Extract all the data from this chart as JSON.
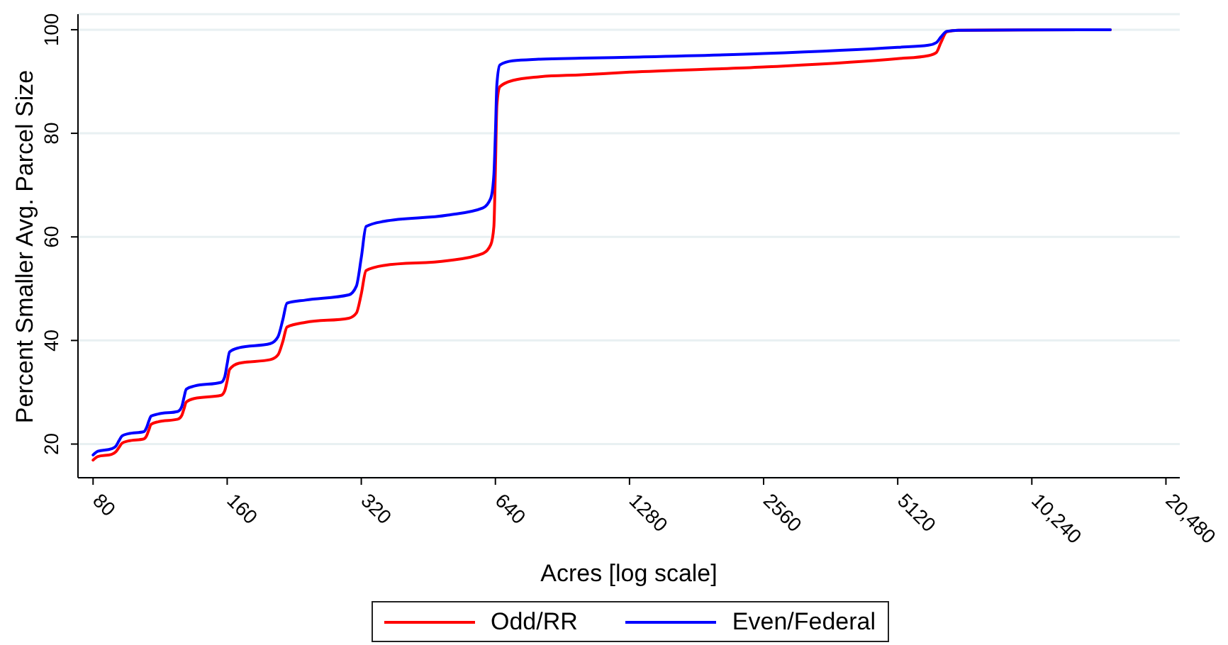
{
  "chart_data": {
    "type": "line",
    "xlabel": "Acres [log scale]",
    "ylabel": "Percent Smaller Avg. Parcel Size",
    "log": "x",
    "x": [
      80,
      82,
      88,
      90,
      91.4,
      93,
      96,
      104,
      105.5,
      106.7,
      108,
      112,
      124,
      126.5,
      128,
      129.5,
      135,
      155,
      158,
      160,
      162,
      170,
      200,
      208,
      213.3,
      218,
      240,
      300,
      312,
      320,
      328,
      360,
      500,
      600,
      625,
      635,
      640,
      645,
      655,
      700,
      800,
      1000,
      1280,
      2560,
      5120,
      6000,
      6250,
      6400,
      6600,
      7000,
      15360
    ],
    "xlim": [
      74,
      22000
    ],
    "xticks": [
      80,
      160,
      320,
      640,
      1280,
      2560,
      5120,
      {
        "value": 10240,
        "label": "10,240"
      },
      {
        "value": 20480,
        "label": "20,480"
      }
    ],
    "ylim": [
      13.5,
      103
    ],
    "yticks": [
      20,
      40,
      60,
      80,
      100
    ],
    "grid": "y",
    "legend": "bottom",
    "line_style": "solid",
    "series": [
      {
        "name": "Odd/RR",
        "color": "#ff0000",
        "values": [
          16.9,
          17.6,
          18.0,
          18.5,
          19.3,
          20.2,
          20.6,
          21.0,
          21.6,
          22.7,
          23.8,
          24.3,
          24.8,
          25.5,
          26.8,
          28.1,
          28.8,
          29.4,
          30.3,
          32.2,
          34.4,
          35.6,
          36.3,
          37.2,
          39.8,
          42.6,
          43.5,
          44.3,
          45.3,
          49.0,
          53.5,
          54.5,
          55.4,
          56.8,
          58.5,
          62.0,
          73.0,
          85.5,
          89.0,
          90.2,
          90.9,
          91.3,
          91.8,
          92.8,
          94.4,
          95.0,
          95.6,
          97.5,
          99.6,
          99.9,
          100
        ]
      },
      {
        "name": "Even/Federal",
        "color": "#0000ff",
        "values": [
          17.9,
          18.6,
          19.1,
          19.6,
          20.6,
          21.6,
          22.0,
          22.4,
          23.2,
          24.4,
          25.4,
          25.8,
          26.3,
          27.2,
          29.0,
          30.6,
          31.2,
          31.9,
          33.0,
          35.5,
          37.8,
          38.6,
          39.4,
          40.7,
          44.0,
          47.2,
          47.8,
          48.8,
          50.5,
          56.0,
          62.0,
          63.0,
          64.2,
          65.6,
          67.5,
          72.0,
          80.0,
          89.5,
          93.2,
          94.0,
          94.3,
          94.5,
          94.7,
          95.4,
          96.6,
          97.0,
          97.5,
          98.6,
          99.7,
          99.9,
          100
        ]
      }
    ]
  }
}
